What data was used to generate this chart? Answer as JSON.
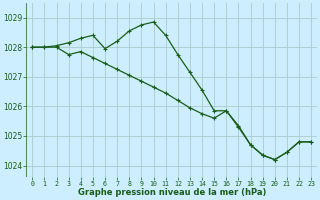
{
  "line1": {
    "x": [
      0,
      1,
      2,
      3,
      4,
      5,
      6,
      7,
      8,
      9,
      10,
      11,
      12,
      13,
      14,
      15,
      16,
      17,
      18,
      19,
      20,
      21,
      22,
      23
    ],
    "y": [
      1028.0,
      1028.0,
      1028.05,
      1028.15,
      1028.3,
      1028.4,
      1027.95,
      1028.2,
      1028.55,
      1028.75,
      1028.85,
      1028.4,
      1027.75,
      1027.15,
      1026.55,
      1025.85,
      1025.85,
      1025.35,
      1024.7,
      1024.35,
      1024.2,
      1024.45,
      1024.8,
      1024.8
    ]
  },
  "line2": {
    "x": [
      0,
      1,
      2,
      3,
      4,
      5,
      6,
      7,
      8,
      9,
      10,
      11,
      12,
      13,
      14,
      15,
      16,
      17,
      18,
      19,
      20,
      21,
      22,
      23
    ],
    "y": [
      1028.0,
      1028.0,
      1028.0,
      1027.75,
      1027.85,
      1027.65,
      1027.45,
      1027.25,
      1027.05,
      1026.85,
      1026.65,
      1026.45,
      1026.2,
      1025.95,
      1025.75,
      1025.6,
      1025.85,
      1025.3,
      1024.7,
      1024.35,
      1024.2,
      1024.45,
      1024.8,
      1024.8
    ]
  },
  "bg_color": "#cceeff",
  "line_color": "#1a5c1a",
  "grid_color": "#aacccc",
  "xlabel": "Graphe pression niveau de la mer (hPa)",
  "ylim": [
    1023.6,
    1029.5
  ],
  "xlim": [
    -0.5,
    23.5
  ],
  "yticks": [
    1024,
    1025,
    1026,
    1027,
    1028,
    1029
  ],
  "xticks": [
    0,
    1,
    2,
    3,
    4,
    5,
    6,
    7,
    8,
    9,
    10,
    11,
    12,
    13,
    14,
    15,
    16,
    17,
    18,
    19,
    20,
    21,
    22,
    23
  ]
}
